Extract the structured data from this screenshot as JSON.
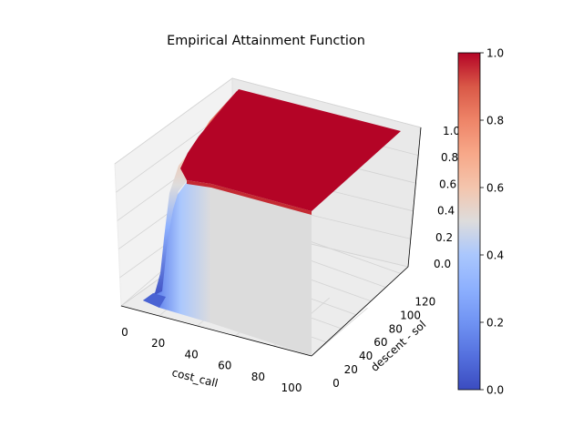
{
  "chart_data": {
    "type": "surface3d",
    "title": "Empirical Attainment Function",
    "xlabel": "cost_call",
    "ylabel": "descent - sol",
    "zlabel": "",
    "x_ticks": [
      "0",
      "20",
      "40",
      "60",
      "80",
      "100"
    ],
    "y_ticks": [
      "0",
      "20",
      "40",
      "60",
      "80",
      "100",
      "120"
    ],
    "z_ticks": [
      "0.0",
      "0.2",
      "0.4",
      "0.6",
      "0.8",
      "1.0"
    ],
    "xlim": [
      0,
      100
    ],
    "ylim": [
      0,
      130
    ],
    "zlim": [
      0,
      1
    ],
    "surface": {
      "description_points": [
        {
          "cost_call": 0,
          "attainment": 0.0
        },
        {
          "cost_call": 5,
          "attainment": 0.0
        },
        {
          "cost_call": 8,
          "attainment": 0.05
        },
        {
          "cost_call": 10,
          "attainment": 0.2
        },
        {
          "cost_call": 12,
          "attainment": 0.5
        },
        {
          "cost_call": 14,
          "attainment": 0.75
        },
        {
          "cost_call": 18,
          "attainment": 0.9
        },
        {
          "cost_call": 25,
          "attainment": 0.97
        },
        {
          "cost_call": 35,
          "attainment": 1.0
        },
        {
          "cost_call": 100,
          "attainment": 1.0
        }
      ]
    },
    "colorbar": {
      "colormap": "coolwarm",
      "ticks": [
        "0.0",
        "0.2",
        "0.4",
        "0.6",
        "0.8",
        "1.0"
      ],
      "range": [
        0,
        1
      ],
      "low_color": "#3b4cc0",
      "mid_color": "#dddddd",
      "high_color": "#b40426"
    },
    "grid": true
  }
}
